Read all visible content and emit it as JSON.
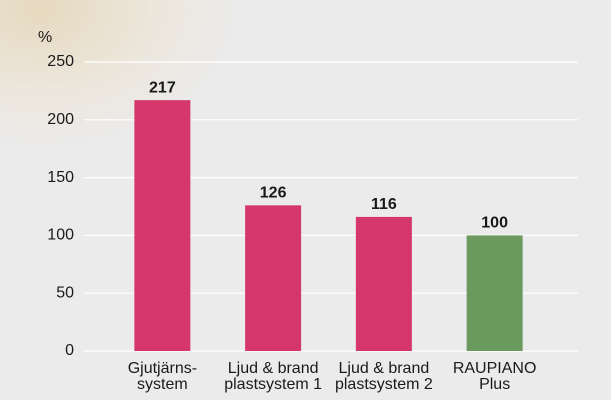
{
  "chart_data": {
    "type": "bar",
    "y_label": "%",
    "categories": [
      [
        "Gjutjärns-",
        "system"
      ],
      [
        "Ljud & brand",
        "plastsystem 1"
      ],
      [
        "Ljud & brand",
        "plastsystem 2"
      ],
      [
        "RAUPIANO",
        "Plus"
      ]
    ],
    "values": [
      217,
      126,
      116,
      100
    ],
    "colors": [
      "#d5376d",
      "#d5376d",
      "#d5376d",
      "#6b9a5f"
    ],
    "ylim": [
      0,
      250
    ],
    "yticks": [
      0,
      50,
      100,
      150,
      200,
      250
    ],
    "grid": true
  }
}
